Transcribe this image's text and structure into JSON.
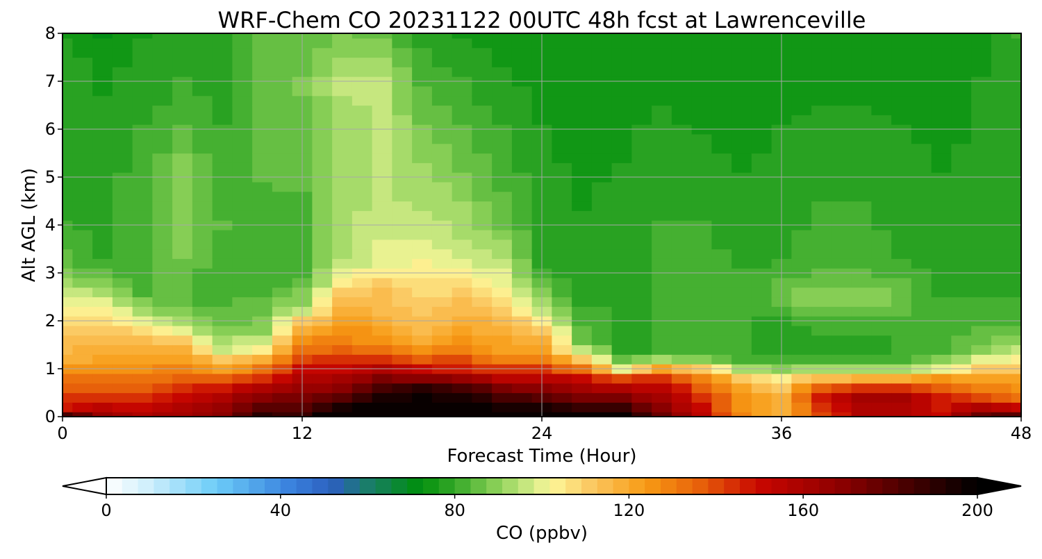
{
  "chart_data": {
    "type": "heatmap",
    "title": "WRF-Chem CO  20231122 00UTC 48h fcst at Lawrenceville",
    "xlabel": "Forecast Time (Hour)",
    "ylabel": "Alt AGL (km)",
    "xlim": [
      0,
      48
    ],
    "ylim": [
      0,
      8
    ],
    "x_ticks": [
      "0",
      "12",
      "24",
      "36",
      "48"
    ],
    "y_ticks": [
      "0",
      "1",
      "2",
      "3",
      "4",
      "5",
      "6",
      "7",
      "8"
    ],
    "grid": true,
    "x_hours": [
      0,
      1,
      2,
      3,
      4,
      5,
      6,
      7,
      8,
      9,
      10,
      11,
      12,
      13,
      14,
      15,
      16,
      17,
      18,
      19,
      20,
      21,
      22,
      23,
      24,
      25,
      26,
      27,
      28,
      29,
      30,
      31,
      32,
      33,
      34,
      35,
      36,
      37,
      38,
      39,
      40,
      41,
      42,
      43,
      44,
      45,
      46,
      47,
      48
    ],
    "alt_levels_km": [
      0,
      0.2,
      0.4,
      0.6,
      0.8,
      1.0,
      1.2,
      1.4,
      1.6,
      1.8,
      2.0,
      2.2,
      2.4,
      2.6,
      2.8,
      3.0,
      3.2,
      3.4,
      3.6,
      3.8,
      4.0,
      4.2,
      4.4,
      4.6,
      4.8,
      5.0,
      5.2,
      5.4,
      5.6,
      5.8,
      6.0,
      6.2,
      6.4,
      6.6,
      6.8,
      7.0,
      7.2,
      7.4,
      7.6,
      7.8,
      8.0
    ],
    "profiles": {
      "0": [
        {
          "z": 0,
          "v": 185
        },
        {
          "z": 0.15,
          "v": 150
        },
        {
          "z": 0.7,
          "v": 135
        },
        {
          "z": 1.2,
          "v": 118
        },
        {
          "z": 2.0,
          "v": 108
        },
        {
          "z": 2.5,
          "v": 100
        },
        {
          "z": 3.0,
          "v": 88
        },
        {
          "z": 4.0,
          "v": 80
        },
        {
          "z": 6.0,
          "v": 78
        },
        {
          "z": 7.5,
          "v": 80
        },
        {
          "z": 8.0,
          "v": 74
        }
      ],
      "2": [
        {
          "z": 0,
          "v": 165
        },
        {
          "z": 0.5,
          "v": 140
        },
        {
          "z": 1.0,
          "v": 125
        },
        {
          "z": 1.6,
          "v": 114
        },
        {
          "z": 2.3,
          "v": 104
        },
        {
          "z": 2.7,
          "v": 90
        },
        {
          "z": 3.2,
          "v": 80
        },
        {
          "z": 5.0,
          "v": 79
        },
        {
          "z": 7.0,
          "v": 76
        },
        {
          "z": 8.0,
          "v": 72
        }
      ],
      "4": [
        {
          "z": 0,
          "v": 158
        },
        {
          "z": 0.4,
          "v": 142
        },
        {
          "z": 1.0,
          "v": 126
        },
        {
          "z": 1.7,
          "v": 112
        },
        {
          "z": 2.1,
          "v": 96
        },
        {
          "z": 2.6,
          "v": 83
        },
        {
          "z": 4.0,
          "v": 83
        },
        {
          "z": 6.0,
          "v": 80
        },
        {
          "z": 8.0,
          "v": 76
        }
      ],
      "6": [
        {
          "z": 0,
          "v": 162
        },
        {
          "z": 0.5,
          "v": 148
        },
        {
          "z": 1.0,
          "v": 130
        },
        {
          "z": 1.5,
          "v": 114
        },
        {
          "z": 1.9,
          "v": 95
        },
        {
          "z": 2.4,
          "v": 84
        },
        {
          "z": 4.0,
          "v": 90
        },
        {
          "z": 5.0,
          "v": 90
        },
        {
          "z": 6.5,
          "v": 81
        },
        {
          "z": 8.0,
          "v": 78
        }
      ],
      "8": [
        {
          "z": 0,
          "v": 170
        },
        {
          "z": 0.5,
          "v": 155
        },
        {
          "z": 0.9,
          "v": 128
        },
        {
          "z": 1.4,
          "v": 98
        },
        {
          "z": 1.9,
          "v": 86
        },
        {
          "z": 3.0,
          "v": 80
        },
        {
          "z": 4.0,
          "v": 84
        },
        {
          "z": 6.0,
          "v": 80
        },
        {
          "z": 8.0,
          "v": 78
        }
      ],
      "10": [
        {
          "z": 0,
          "v": 190
        },
        {
          "z": 0.5,
          "v": 165
        },
        {
          "z": 1.0,
          "v": 132
        },
        {
          "z": 1.4,
          "v": 104
        },
        {
          "z": 1.8,
          "v": 90
        },
        {
          "z": 3.0,
          "v": 80
        },
        {
          "z": 5.0,
          "v": 84
        },
        {
          "z": 7.0,
          "v": 86
        },
        {
          "z": 8.0,
          "v": 84
        }
      ],
      "12": [
        {
          "z": 0,
          "v": 188
        },
        {
          "z": 0.5,
          "v": 168
        },
        {
          "z": 1.0,
          "v": 150
        },
        {
          "z": 1.5,
          "v": 128
        },
        {
          "z": 1.9,
          "v": 115
        },
        {
          "z": 2.3,
          "v": 92
        },
        {
          "z": 3.0,
          "v": 82
        },
        {
          "z": 5.0,
          "v": 84
        },
        {
          "z": 7.0,
          "v": 88
        },
        {
          "z": 8.0,
          "v": 84
        }
      ],
      "14": [
        {
          "z": 0,
          "v": 205
        },
        {
          "z": 0.5,
          "v": 175
        },
        {
          "z": 1.0,
          "v": 150
        },
        {
          "z": 1.6,
          "v": 130
        },
        {
          "z": 2.3,
          "v": 118
        },
        {
          "z": 2.8,
          "v": 104
        },
        {
          "z": 3.3,
          "v": 94
        },
        {
          "z": 5.5,
          "v": 92
        },
        {
          "z": 7.0,
          "v": 95
        },
        {
          "z": 8.0,
          "v": 88
        }
      ],
      "16": [
        {
          "z": 0,
          "v": 212
        },
        {
          "z": 0.6,
          "v": 185
        },
        {
          "z": 1.1,
          "v": 150
        },
        {
          "z": 1.5,
          "v": 126
        },
        {
          "z": 2.0,
          "v": 118
        },
        {
          "z": 2.7,
          "v": 112
        },
        {
          "z": 3.2,
          "v": 100
        },
        {
          "z": 4.5,
          "v": 95
        },
        {
          "z": 7.0,
          "v": 95
        },
        {
          "z": 8.0,
          "v": 86
        }
      ],
      "18": [
        {
          "z": 0,
          "v": 215
        },
        {
          "z": 0.6,
          "v": 190
        },
        {
          "z": 1.0,
          "v": 150
        },
        {
          "z": 1.5,
          "v": 120
        },
        {
          "z": 2.3,
          "v": 110
        },
        {
          "z": 3.0,
          "v": 104
        },
        {
          "z": 4.0,
          "v": 96
        },
        {
          "z": 6.0,
          "v": 88
        },
        {
          "z": 8.0,
          "v": 78
        }
      ],
      "20": [
        {
          "z": 0,
          "v": 210
        },
        {
          "z": 0.6,
          "v": 185
        },
        {
          "z": 1.0,
          "v": 148
        },
        {
          "z": 1.5,
          "v": 125
        },
        {
          "z": 2.3,
          "v": 115
        },
        {
          "z": 2.9,
          "v": 104
        },
        {
          "z": 3.5,
          "v": 96
        },
        {
          "z": 5.0,
          "v": 88
        },
        {
          "z": 8.0,
          "v": 76
        }
      ],
      "22": [
        {
          "z": 0,
          "v": 205
        },
        {
          "z": 0.5,
          "v": 180
        },
        {
          "z": 0.9,
          "v": 148
        },
        {
          "z": 1.3,
          "v": 124
        },
        {
          "z": 2.0,
          "v": 115
        },
        {
          "z": 2.5,
          "v": 106
        },
        {
          "z": 3.2,
          "v": 96
        },
        {
          "z": 4.0,
          "v": 86
        },
        {
          "z": 8.0,
          "v": 74
        }
      ],
      "24": [
        {
          "z": 0,
          "v": 205
        },
        {
          "z": 0.5,
          "v": 175
        },
        {
          "z": 0.9,
          "v": 148
        },
        {
          "z": 1.3,
          "v": 124
        },
        {
          "z": 1.8,
          "v": 112
        },
        {
          "z": 2.2,
          "v": 96
        },
        {
          "z": 3.0,
          "v": 80
        },
        {
          "z": 8.0,
          "v": 74
        }
      ],
      "26": [
        {
          "z": 0,
          "v": 200
        },
        {
          "z": 0.5,
          "v": 168
        },
        {
          "z": 0.9,
          "v": 145
        },
        {
          "z": 1.2,
          "v": 112
        },
        {
          "z": 1.5,
          "v": 88
        },
        {
          "z": 2.5,
          "v": 78
        },
        {
          "z": 8.0,
          "v": 73
        }
      ],
      "28": [
        {
          "z": 0,
          "v": 200
        },
        {
          "z": 0.5,
          "v": 165
        },
        {
          "z": 0.8,
          "v": 140
        },
        {
          "z": 1.0,
          "v": 100
        },
        {
          "z": 1.3,
          "v": 80
        },
        {
          "z": 8.0,
          "v": 74
        }
      ],
      "30": [
        {
          "z": 0,
          "v": 175
        },
        {
          "z": 0.5,
          "v": 158
        },
        {
          "z": 0.9,
          "v": 140
        },
        {
          "z": 1.1,
          "v": 102
        },
        {
          "z": 1.3,
          "v": 80
        },
        {
          "z": 4.0,
          "v": 80
        },
        {
          "z": 8.0,
          "v": 74
        }
      ],
      "32": [
        {
          "z": 0,
          "v": 155
        },
        {
          "z": 0.5,
          "v": 142
        },
        {
          "z": 0.9,
          "v": 125
        },
        {
          "z": 1.1,
          "v": 98
        },
        {
          "z": 1.3,
          "v": 80
        },
        {
          "z": 3.0,
          "v": 82
        },
        {
          "z": 6.0,
          "v": 76
        },
        {
          "z": 8.0,
          "v": 74
        }
      ],
      "34": [
        {
          "z": 0,
          "v": 128
        },
        {
          "z": 0.5,
          "v": 124
        },
        {
          "z": 0.8,
          "v": 112
        },
        {
          "z": 1.0,
          "v": 94
        },
        {
          "z": 1.2,
          "v": 80
        },
        {
          "z": 3.0,
          "v": 80
        },
        {
          "z": 7.0,
          "v": 73
        },
        {
          "z": 8.0,
          "v": 74
        }
      ],
      "36": [
        {
          "z": 0,
          "v": 118
        },
        {
          "z": 0.5,
          "v": 116
        },
        {
          "z": 0.8,
          "v": 105
        },
        {
          "z": 1.0,
          "v": 90
        },
        {
          "z": 1.3,
          "v": 80
        },
        {
          "z": 2.0,
          "v": 78
        },
        {
          "z": 2.5,
          "v": 88
        },
        {
          "z": 3.2,
          "v": 80
        },
        {
          "z": 8.0,
          "v": 74
        }
      ],
      "38": [
        {
          "z": 0,
          "v": 140
        },
        {
          "z": 0.4,
          "v": 148
        },
        {
          "z": 0.7,
          "v": 130
        },
        {
          "z": 0.9,
          "v": 100
        },
        {
          "z": 1.2,
          "v": 80
        },
        {
          "z": 1.6,
          "v": 78
        },
        {
          "z": 2.5,
          "v": 90
        },
        {
          "z": 3.2,
          "v": 82
        },
        {
          "z": 8.0,
          "v": 74
        }
      ],
      "40": [
        {
          "z": 0,
          "v": 158
        },
        {
          "z": 0.4,
          "v": 160
        },
        {
          "z": 0.7,
          "v": 135
        },
        {
          "z": 0.9,
          "v": 100
        },
        {
          "z": 1.2,
          "v": 80
        },
        {
          "z": 1.6,
          "v": 78
        },
        {
          "z": 2.5,
          "v": 90
        },
        {
          "z": 3.2,
          "v": 82
        },
        {
          "z": 8.0,
          "v": 74
        }
      ],
      "42": [
        {
          "z": 0,
          "v": 158
        },
        {
          "z": 0.4,
          "v": 160
        },
        {
          "z": 0.7,
          "v": 135
        },
        {
          "z": 0.9,
          "v": 100
        },
        {
          "z": 1.2,
          "v": 80
        },
        {
          "z": 2.0,
          "v": 82
        },
        {
          "z": 2.5,
          "v": 88
        },
        {
          "z": 3.2,
          "v": 80
        },
        {
          "z": 8.0,
          "v": 74
        }
      ],
      "44": [
        {
          "z": 0,
          "v": 150
        },
        {
          "z": 0.4,
          "v": 148
        },
        {
          "z": 0.8,
          "v": 124
        },
        {
          "z": 1.0,
          "v": 100
        },
        {
          "z": 1.3,
          "v": 82
        },
        {
          "z": 2.0,
          "v": 82
        },
        {
          "z": 3.0,
          "v": 78
        },
        {
          "z": 8.0,
          "v": 74
        }
      ],
      "46": [
        {
          "z": 0,
          "v": 178
        },
        {
          "z": 0.4,
          "v": 140
        },
        {
          "z": 0.8,
          "v": 120
        },
        {
          "z": 1.1,
          "v": 104
        },
        {
          "z": 1.4,
          "v": 88
        },
        {
          "z": 2.0,
          "v": 82
        },
        {
          "z": 3.0,
          "v": 78
        },
        {
          "z": 8.0,
          "v": 76
        }
      ],
      "48": [
        {
          "z": 0,
          "v": 180
        },
        {
          "z": 0.3,
          "v": 135
        },
        {
          "z": 0.8,
          "v": 120
        },
        {
          "z": 1.2,
          "v": 104
        },
        {
          "z": 1.6,
          "v": 90
        },
        {
          "z": 2.0,
          "v": 82
        },
        {
          "z": 3.0,
          "v": 78
        },
        {
          "z": 8.0,
          "v": 80
        }
      ]
    },
    "colorbar": {
      "label": "CO  (ppbv)",
      "min": 0,
      "max": 200,
      "ticks": [
        "0",
        "40",
        "80",
        "120",
        "160",
        "200"
      ],
      "extend": "both",
      "levels": 55,
      "stops": [
        {
          "v": 0,
          "color": "#ffffff"
        },
        {
          "v": 10,
          "color": "#cdeefc"
        },
        {
          "v": 25,
          "color": "#6dcdf8"
        },
        {
          "v": 42,
          "color": "#3a82de"
        },
        {
          "v": 52,
          "color": "#2c5fbe"
        },
        {
          "v": 60,
          "color": "#1a7d6a"
        },
        {
          "v": 72,
          "color": "#008f0c"
        },
        {
          "v": 80,
          "color": "#35a828"
        },
        {
          "v": 90,
          "color": "#8ed25a"
        },
        {
          "v": 98,
          "color": "#d4ec88"
        },
        {
          "v": 102,
          "color": "#fdf79a"
        },
        {
          "v": 112,
          "color": "#fbc55d"
        },
        {
          "v": 124,
          "color": "#f79a14"
        },
        {
          "v": 136,
          "color": "#e8620a"
        },
        {
          "v": 150,
          "color": "#c80600"
        },
        {
          "v": 168,
          "color": "#8f0000"
        },
        {
          "v": 185,
          "color": "#420000"
        },
        {
          "v": 200,
          "color": "#000000"
        }
      ]
    }
  }
}
